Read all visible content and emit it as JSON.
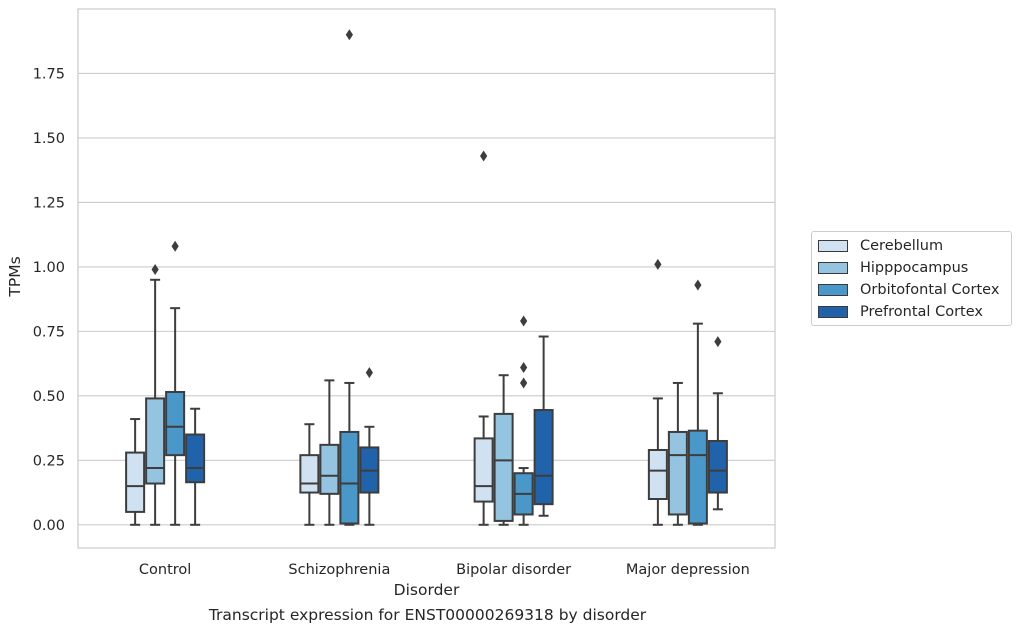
{
  "chart_data": {
    "type": "box",
    "xlabel": "Disorder",
    "ylabel": "TPMs",
    "caption": "Transcript expression for ENST00000269318 by disorder",
    "ylim": [
      -0.09,
      2.0
    ],
    "yticks": [
      0.0,
      0.25,
      0.5,
      0.75,
      1.0,
      1.25,
      1.5,
      1.75
    ],
    "ytick_labels": [
      "0.00",
      "0.25",
      "0.50",
      "0.75",
      "1.00",
      "1.25",
      "1.50",
      "1.75"
    ],
    "grid": "horizontal",
    "legend_position": "outside-right",
    "categories": [
      "Control",
      "Schizophrenia",
      "Bipolar disorder",
      "Major depression"
    ],
    "series": [
      {
        "name": "Cerebellum",
        "color": "#d0e1f2",
        "boxes": [
          {
            "whislo": 0.0,
            "q1": 0.05,
            "med": 0.15,
            "q3": 0.28,
            "whishi": 0.41,
            "fliers": []
          },
          {
            "whislo": 0.0,
            "q1": 0.125,
            "med": 0.16,
            "q3": 0.27,
            "whishi": 0.39,
            "fliers": []
          },
          {
            "whislo": 0.0,
            "q1": 0.09,
            "med": 0.15,
            "q3": 0.335,
            "whishi": 0.42,
            "fliers": [
              1.43
            ]
          },
          {
            "whislo": 0.0,
            "q1": 0.1,
            "med": 0.21,
            "q3": 0.29,
            "whishi": 0.49,
            "fliers": [
              1.01
            ]
          }
        ]
      },
      {
        "name": "Hipppocampus",
        "color": "#94c4df",
        "boxes": [
          {
            "whislo": 0.0,
            "q1": 0.16,
            "med": 0.22,
            "q3": 0.49,
            "whishi": 0.95,
            "fliers": [
              0.99
            ]
          },
          {
            "whislo": 0.0,
            "q1": 0.12,
            "med": 0.19,
            "q3": 0.31,
            "whishi": 0.56,
            "fliers": []
          },
          {
            "whislo": 0.0,
            "q1": 0.015,
            "med": 0.25,
            "q3": 0.43,
            "whishi": 0.58,
            "fliers": []
          },
          {
            "whislo": 0.0,
            "q1": 0.04,
            "med": 0.27,
            "q3": 0.36,
            "whishi": 0.55,
            "fliers": []
          }
        ]
      },
      {
        "name": "Orbitofontal Cortex",
        "color": "#4a98c9",
        "boxes": [
          {
            "whislo": 0.0,
            "q1": 0.27,
            "med": 0.38,
            "q3": 0.515,
            "whishi": 0.84,
            "fliers": [
              1.08
            ]
          },
          {
            "whislo": 0.0,
            "q1": 0.005,
            "med": 0.16,
            "q3": 0.36,
            "whishi": 0.55,
            "fliers": [
              1.9
            ]
          },
          {
            "whislo": 0.0,
            "q1": 0.04,
            "med": 0.12,
            "q3": 0.2,
            "whishi": 0.22,
            "fliers": [
              0.55,
              0.61,
              0.79
            ]
          },
          {
            "whislo": 0.0,
            "q1": 0.005,
            "med": 0.27,
            "q3": 0.365,
            "whishi": 0.78,
            "fliers": [
              0.93
            ]
          }
        ]
      },
      {
        "name": "Prefrontal Cortex",
        "color": "#2163aa",
        "boxes": [
          {
            "whislo": 0.0,
            "q1": 0.165,
            "med": 0.22,
            "q3": 0.35,
            "whishi": 0.45,
            "fliers": []
          },
          {
            "whislo": 0.0,
            "q1": 0.125,
            "med": 0.21,
            "q3": 0.3,
            "whishi": 0.38,
            "fliers": [
              0.59
            ]
          },
          {
            "whislo": 0.035,
            "q1": 0.08,
            "med": 0.19,
            "q3": 0.445,
            "whishi": 0.73,
            "fliers": []
          },
          {
            "whislo": 0.06,
            "q1": 0.125,
            "med": 0.21,
            "q3": 0.325,
            "whishi": 0.51,
            "fliers": [
              0.71
            ]
          }
        ]
      }
    ]
  }
}
